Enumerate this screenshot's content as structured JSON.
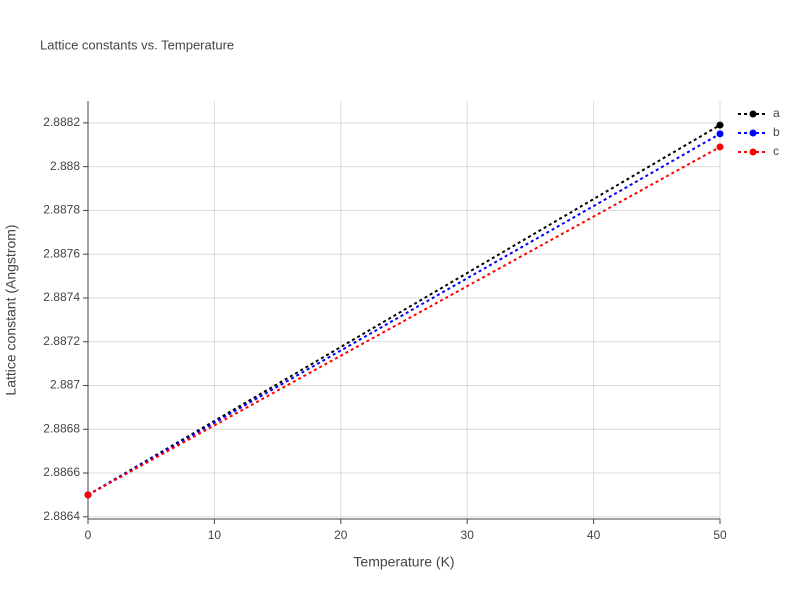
{
  "chart_data": {
    "type": "line",
    "title": "Lattice constants vs. Temperature",
    "x_label": "Temperature (K)",
    "y_label": "Lattice constant (Angstrom)",
    "x": [
      0,
      50
    ],
    "series": [
      {
        "name": "a",
        "color": "#000000",
        "values": [
          2.8865,
          2.88819
        ]
      },
      {
        "name": "b",
        "color": "#0000ff",
        "values": [
          2.8865,
          2.88815
        ]
      },
      {
        "name": "c",
        "color": "#ff0000",
        "values": [
          2.8865,
          2.88809
        ]
      }
    ],
    "xlim": [
      0,
      50
    ],
    "xticks": [
      0,
      10,
      20,
      30,
      40,
      50
    ],
    "ylim": [
      2.88639,
      2.8883
    ],
    "yticks": [
      2.8864,
      2.8866,
      2.8868,
      2.887,
      2.8872,
      2.8874,
      2.8876,
      2.8878,
      2.888,
      2.8882
    ],
    "grid": true,
    "legend": "right"
  }
}
